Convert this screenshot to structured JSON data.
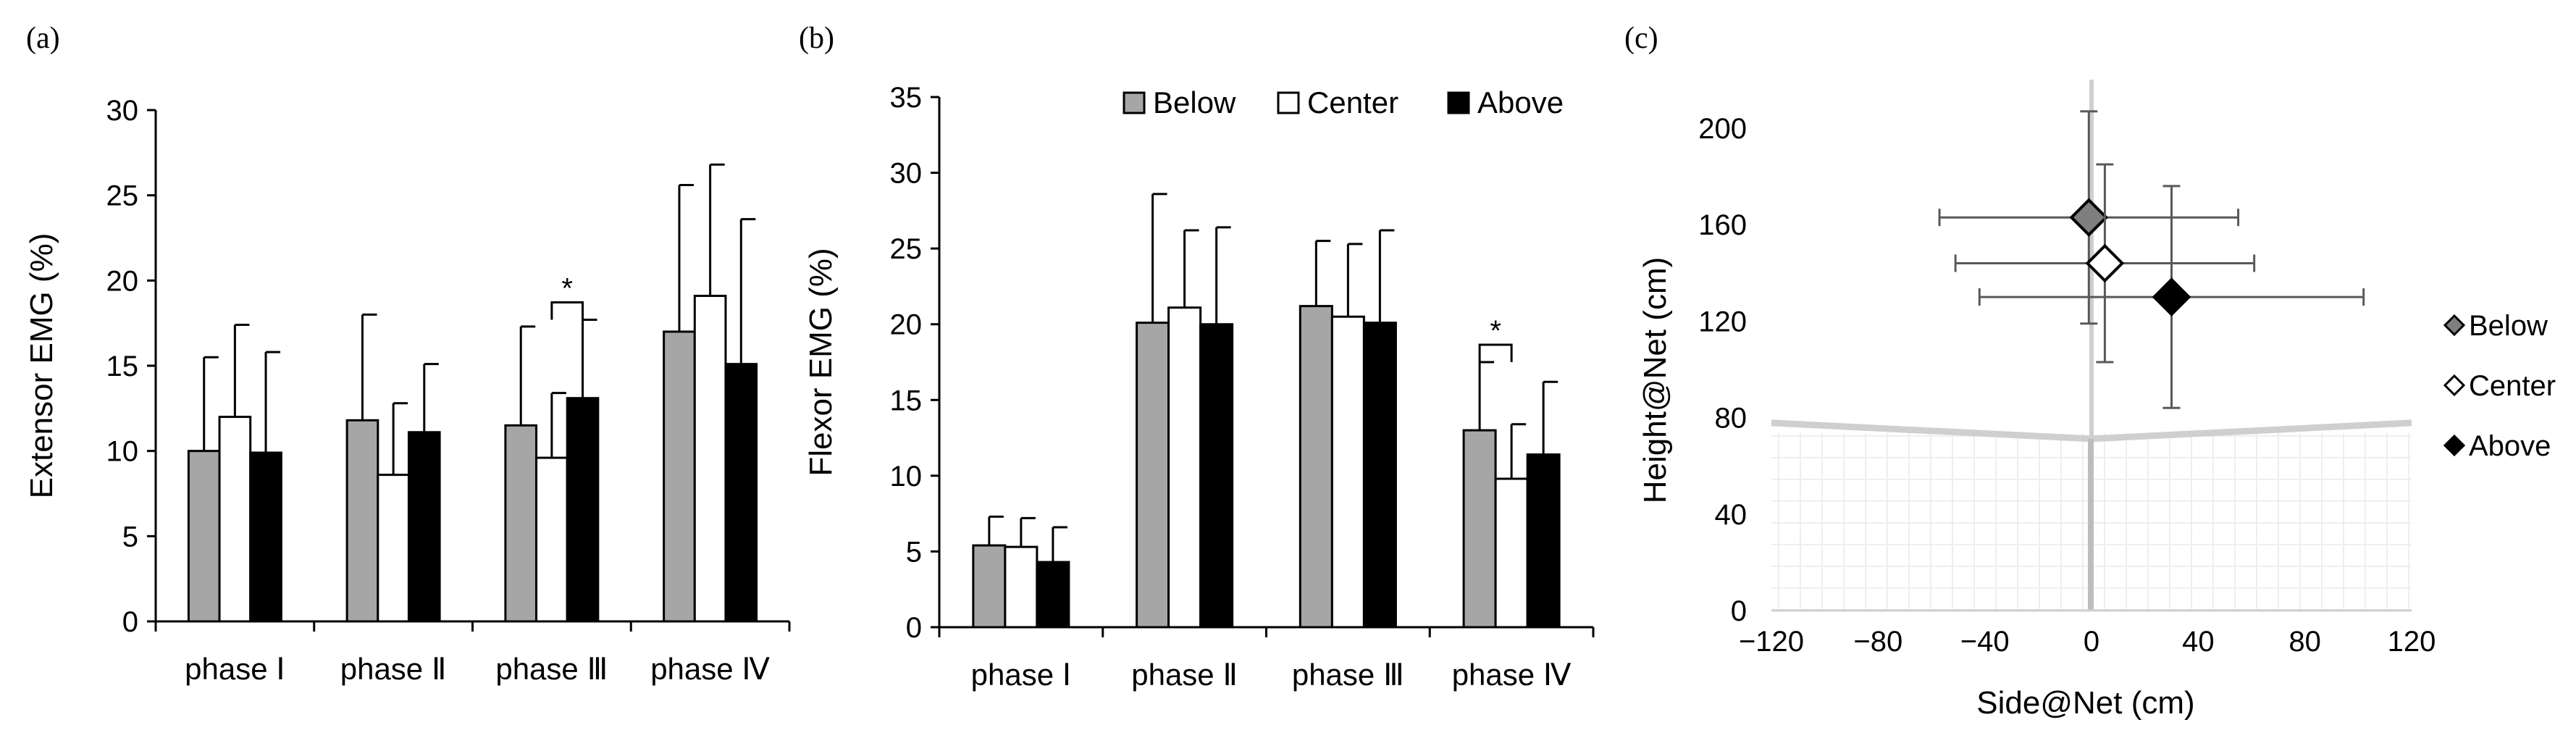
{
  "panels": {
    "a": {
      "label": "(a)"
    },
    "b": {
      "label": "(b)"
    },
    "c": {
      "label": "(c)"
    }
  },
  "colors": {
    "below": "#a6a6a6",
    "center": "#ffffff",
    "above": "#000000",
    "below_marker": "#7f7f7f",
    "error_bar": "#000000",
    "scatter_error": "#595959",
    "net": "#cfcfcf",
    "net_grid": "#eeeeee"
  },
  "chart_data": [
    {
      "id": "a",
      "type": "bar",
      "title": "",
      "xlabel": "",
      "ylabel": "Extensor EMG (%)",
      "ylim": [
        0,
        30
      ],
      "yticks": [
        0,
        5,
        10,
        15,
        20,
        25,
        30
      ],
      "categories": [
        "phase Ⅰ",
        "phase Ⅱ",
        "phase Ⅲ",
        "phase Ⅳ"
      ],
      "series": [
        {
          "name": "Below",
          "values": [
            10.0,
            11.8,
            11.5,
            17.0
          ],
          "errors": [
            5.5,
            6.2,
            5.8,
            8.6
          ]
        },
        {
          "name": "Center",
          "values": [
            12.0,
            8.6,
            9.6,
            19.1
          ],
          "errors": [
            5.4,
            4.2,
            3.8,
            7.7
          ]
        },
        {
          "name": "Above",
          "values": [
            9.9,
            11.1,
            13.1,
            15.1
          ],
          "errors": [
            5.9,
            4.0,
            4.6,
            8.5
          ]
        }
      ],
      "significance": [
        {
          "category": 2,
          "between": [
            "Center",
            "Above"
          ],
          "label": "*"
        }
      ]
    },
    {
      "id": "b",
      "type": "bar",
      "title": "",
      "xlabel": "",
      "ylabel": "Flexor EMG (%)",
      "ylim": [
        0,
        35
      ],
      "yticks": [
        0,
        5,
        10,
        15,
        20,
        25,
        30,
        35
      ],
      "categories": [
        "phase Ⅰ",
        "phase Ⅱ",
        "phase Ⅲ",
        "phase Ⅳ"
      ],
      "legend": {
        "placement": "top-right",
        "entries": [
          "Below",
          "Center",
          "Above"
        ]
      },
      "series": [
        {
          "name": "Below",
          "values": [
            5.4,
            20.1,
            21.2,
            13.0
          ],
          "errors": [
            1.9,
            8.5,
            4.3,
            4.5
          ]
        },
        {
          "name": "Center",
          "values": [
            5.3,
            21.1,
            20.5,
            9.8
          ],
          "errors": [
            1.9,
            5.1,
            4.8,
            3.6
          ]
        },
        {
          "name": "Above",
          "values": [
            4.3,
            20.0,
            20.1,
            11.4
          ],
          "errors": [
            2.3,
            6.4,
            6.1,
            4.8
          ]
        }
      ],
      "significance": [
        {
          "category": 3,
          "between": [
            "Below",
            "Center"
          ],
          "label": "*"
        }
      ]
    },
    {
      "id": "c",
      "type": "scatter",
      "title": "",
      "xlabel": "Side@Net (cm)",
      "ylabel": "Height@Net (cm)",
      "xlim": [
        -120,
        120
      ],
      "ylim": [
        0,
        200
      ],
      "xticks": [
        -120,
        -80,
        -40,
        0,
        40,
        80,
        120
      ],
      "xtick_labels": [
        "−120",
        "−80",
        "−40",
        "0",
        "40",
        "80",
        "120"
      ],
      "yticks": [
        0,
        40,
        80,
        120,
        160,
        200
      ],
      "net_height": 76,
      "legend": {
        "placement": "right",
        "entries": [
          "Below",
          "Center",
          "Above"
        ]
      },
      "series": [
        {
          "name": "Below",
          "x": -1,
          "y": 163,
          "xerr": 56,
          "yerr": 44
        },
        {
          "name": "Center",
          "x": 5,
          "y": 144,
          "xerr": 56,
          "yerr": 41
        },
        {
          "name": "Above",
          "x": 30,
          "y": 130,
          "xerr": 72,
          "yerr": 46
        }
      ]
    }
  ]
}
